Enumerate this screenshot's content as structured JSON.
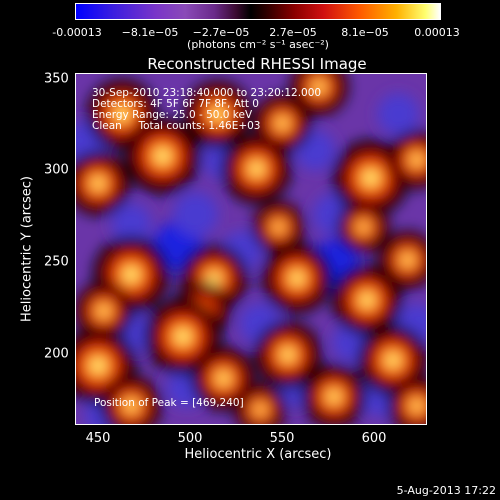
{
  "colorbar": {
    "ticks": [
      "-0.00013",
      "−8.1e−05",
      "−2.7e−05",
      "2.7e−05",
      "8.1e−05",
      "0.00013"
    ],
    "unit": "(photons cm⁻² s⁻¹ asec⁻²)"
  },
  "chart_data": {
    "type": "heatmap",
    "title": "Reconstructed RHESSI Image",
    "xlabel": "Heliocentric X (arcsec)",
    "ylabel": "Heliocentric Y (arcsec)",
    "xlim": [
      440,
      630
    ],
    "ylim": [
      160,
      352
    ],
    "xticks": [
      "450",
      "500",
      "550",
      "600"
    ],
    "yticks": [
      "350",
      "300",
      "250",
      "200"
    ],
    "colorscale_range": [
      -0.00013,
      0.00013
    ],
    "annotations": [
      "30-Sep-2010 23:18:40.000 to 23:20:12.000",
      "Detectors: 4F 5F 6F 7F 8F, Att 0",
      "Energy Range: 25.0 - 50.0 keV",
      "Clean     Total counts: 1.46E+03"
    ],
    "peak_label": "Position of Peak = [469,240]",
    "blobs": [
      {
        "x": 465,
        "y": 330,
        "v": 0.9
      },
      {
        "x": 487,
        "y": 307,
        "v": 1.0
      },
      {
        "x": 452,
        "y": 292,
        "v": 0.8
      },
      {
        "x": 517,
        "y": 330,
        "v": 0.85
      },
      {
        "x": 538,
        "y": 300,
        "v": 0.9
      },
      {
        "x": 552,
        "y": 325,
        "v": 0.7
      },
      {
        "x": 572,
        "y": 345,
        "v": 0.7
      },
      {
        "x": 600,
        "y": 295,
        "v": 1.0
      },
      {
        "x": 596,
        "y": 268,
        "v": 0.6
      },
      {
        "x": 625,
        "y": 305,
        "v": 0.7
      },
      {
        "x": 470,
        "y": 242,
        "v": 1.0
      },
      {
        "x": 455,
        "y": 222,
        "v": 0.7
      },
      {
        "x": 515,
        "y": 240,
        "v": 0.85
      },
      {
        "x": 508,
        "y": 222,
        "v": 0.7
      },
      {
        "x": 560,
        "y": 240,
        "v": 0.9
      },
      {
        "x": 550,
        "y": 268,
        "v": 0.6
      },
      {
        "x": 598,
        "y": 228,
        "v": 0.9
      },
      {
        "x": 620,
        "y": 250,
        "v": 0.7
      },
      {
        "x": 498,
        "y": 208,
        "v": 1.0
      },
      {
        "x": 452,
        "y": 192,
        "v": 1.0
      },
      {
        "x": 520,
        "y": 185,
        "v": 0.8
      },
      {
        "x": 555,
        "y": 198,
        "v": 0.85
      },
      {
        "x": 580,
        "y": 175,
        "v": 0.8
      },
      {
        "x": 612,
        "y": 195,
        "v": 0.9
      },
      {
        "x": 470,
        "y": 170,
        "v": 0.75
      },
      {
        "x": 540,
        "y": 168,
        "v": 0.6
      },
      {
        "x": 625,
        "y": 170,
        "v": 0.7
      },
      {
        "x": 495,
        "y": 258,
        "v": -1.0
      },
      {
        "x": 505,
        "y": 275,
        "v": -0.8
      },
      {
        "x": 580,
        "y": 248,
        "v": -1.0
      },
      {
        "x": 580,
        "y": 275,
        "v": -0.6
      },
      {
        "x": 470,
        "y": 270,
        "v": -0.5
      },
      {
        "x": 530,
        "y": 255,
        "v": -0.5
      },
      {
        "x": 445,
        "y": 315,
        "v": -0.5
      },
      {
        "x": 520,
        "y": 305,
        "v": -0.5
      },
      {
        "x": 570,
        "y": 310,
        "v": -0.5
      },
      {
        "x": 615,
        "y": 330,
        "v": -0.6
      },
      {
        "x": 470,
        "y": 210,
        "v": -0.5
      },
      {
        "x": 540,
        "y": 215,
        "v": -0.6
      },
      {
        "x": 590,
        "y": 205,
        "v": -0.5
      },
      {
        "x": 500,
        "y": 180,
        "v": -0.5
      },
      {
        "x": 605,
        "y": 175,
        "v": -0.5
      },
      {
        "x": 455,
        "y": 165,
        "v": -0.4
      },
      {
        "x": 560,
        "y": 180,
        "v": -0.4
      },
      {
        "x": 625,
        "y": 215,
        "v": -0.5
      }
    ]
  },
  "footer": {
    "date": "5-Aug-2013 17:22"
  }
}
